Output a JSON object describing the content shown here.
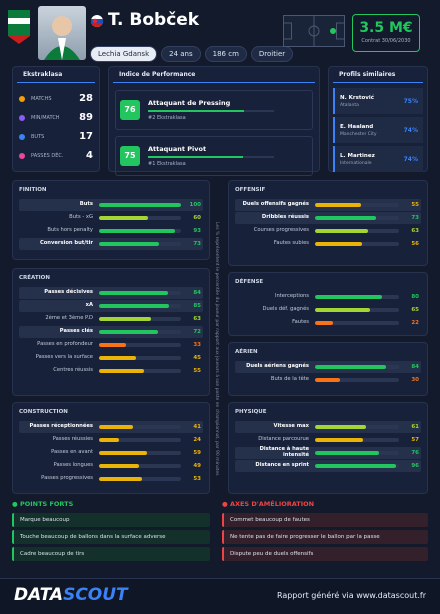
{
  "header": {
    "name": "T. Bobček",
    "club": "Lechia Gdansk",
    "age": "24 ans",
    "height": "186 cm",
    "foot": "Droitier",
    "market_value": "3.5 M€",
    "contract": "Contrat 30/06/2030"
  },
  "league_stats": {
    "title": "Ekstraklasa",
    "items": [
      {
        "label": "MATCHS",
        "value": 28
      },
      {
        "label": "MIN/MATCH",
        "value": 89
      },
      {
        "label": "BUTS",
        "value": 17
      },
      {
        "label": "PASSES DÉC.",
        "value": 4
      }
    ]
  },
  "performance": {
    "title": "Indice de Performance",
    "items": [
      {
        "score": 76,
        "role": "Attaquant de Pressing",
        "rank": "#2 Ekstraklasa"
      },
      {
        "score": 75,
        "role": "Attaquant Pivot",
        "rank": "#1 Ekstraklasa"
      }
    ]
  },
  "similar": {
    "title": "Profils similaires",
    "items": [
      {
        "name": "N. Krstović",
        "club": "Atalanta",
        "score": "75%"
      },
      {
        "name": "E. Haaland",
        "club": "Manchester City",
        "score": "74%"
      },
      {
        "name": "L. Martinez",
        "club": "Internationale",
        "score": "74%"
      }
    ]
  },
  "note": "Les % représentent le percentile du joueur par rapport aux joueurs à son poste en championnat, par 90 minutes",
  "sections": [
    {
      "title": "FINITION",
      "rows": [
        {
          "label": "Buts",
          "value": 100,
          "color": "#22c55e",
          "highlight": true
        },
        {
          "label": "Buts - xG",
          "value": 60,
          "color": "#a3d635",
          "highlight": false
        },
        {
          "label": "Buts hors penalty",
          "value": 93,
          "color": "#22c55e",
          "highlight": false
        },
        {
          "label": "Conversion but/tir",
          "value": 73,
          "color": "#22c55e",
          "highlight": true
        }
      ]
    },
    {
      "title": "CRÉATION",
      "rows": [
        {
          "label": "Passes décisives",
          "value": 84,
          "color": "#22c55e",
          "highlight": true
        },
        {
          "label": "xA",
          "value": 85,
          "color": "#22c55e",
          "highlight": true
        },
        {
          "label": "2ème et 3ème P.D",
          "value": 63,
          "color": "#a3d635",
          "highlight": false
        },
        {
          "label": "Passes clés",
          "value": 72,
          "color": "#22c55e",
          "highlight": true
        },
        {
          "label": "Passes en profondeur",
          "value": 33,
          "color": "#f97316",
          "highlight": false
        },
        {
          "label": "Passes vers la surface",
          "value": 45,
          "color": "#eab308",
          "highlight": false
        },
        {
          "label": "Centres réussis",
          "value": 55,
          "color": "#eab308",
          "highlight": false
        }
      ]
    },
    {
      "title": "CONSTRUCTION",
      "rows": [
        {
          "label": "Passes réceptionnées",
          "value": 41,
          "color": "#eab308",
          "highlight": true
        },
        {
          "label": "Passes réussies",
          "value": 24,
          "color": "#eab308",
          "highlight": false
        },
        {
          "label": "Passes en avant",
          "value": 59,
          "color": "#eab308",
          "highlight": false
        },
        {
          "label": "Passes longues",
          "value": 49,
          "color": "#eab308",
          "highlight": false
        },
        {
          "label": "Passes progressives",
          "value": 53,
          "color": "#eab308",
          "highlight": false
        }
      ]
    },
    {
      "title": "OFFENSIF",
      "rows": [
        {
          "label": "Duels offensifs gagnés",
          "value": 55,
          "color": "#eab308",
          "highlight": true
        },
        {
          "label": "Dribbles réussis",
          "value": 73,
          "color": "#22c55e",
          "highlight": true
        },
        {
          "label": "Courses progressives",
          "value": 63,
          "color": "#a3d635",
          "highlight": false
        },
        {
          "label": "Fautes subies",
          "value": 56,
          "color": "#eab308",
          "highlight": false
        }
      ]
    },
    {
      "title": "DÉFENSE",
      "rows": [
        {
          "label": "Interceptions",
          "value": 80,
          "color": "#22c55e",
          "highlight": false
        },
        {
          "label": "Duels déf. gagnés",
          "value": 65,
          "color": "#a3d635",
          "highlight": false
        },
        {
          "label": "Fautes",
          "value": 22,
          "color": "#f97316",
          "highlight": false
        }
      ]
    },
    {
      "title": "AÉRIEN",
      "rows": [
        {
          "label": "Duels aériens gagnés",
          "value": 84,
          "color": "#22c55e",
          "highlight": true
        },
        {
          "label": "Buts de la tête",
          "value": 30,
          "color": "#f97316",
          "highlight": false
        }
      ]
    },
    {
      "title": "PHYSIQUE",
      "rows": [
        {
          "label": "Vitesse max",
          "value": 61,
          "color": "#a3d635",
          "highlight": true
        },
        {
          "label": "Distance parcourue",
          "value": 57,
          "color": "#eab308",
          "highlight": false
        },
        {
          "label": "Distance à haute intensité",
          "value": 76,
          "color": "#22c55e",
          "highlight": true
        },
        {
          "label": "Distance en sprint",
          "value": 96,
          "color": "#22c55e",
          "highlight": true
        }
      ]
    }
  ],
  "strengths": {
    "title": "POINTS FORTS",
    "items": [
      "Marque beaucoup",
      "Touche beaucoup de ballons dans la surface adverse",
      "Cadre beaucoup de tirs"
    ]
  },
  "weaknesses": {
    "title": "AXES D'AMÉLIORATION",
    "items": [
      "Commet beaucoup de fautes",
      "Ne tente pas de faire progresser le ballon par la passe",
      "Dispute peu de duels offensifs"
    ]
  },
  "footer": {
    "logo_left": "DATA",
    "logo_right": "SCOUT",
    "text": "Rapport généré via www.datascout.fr"
  }
}
